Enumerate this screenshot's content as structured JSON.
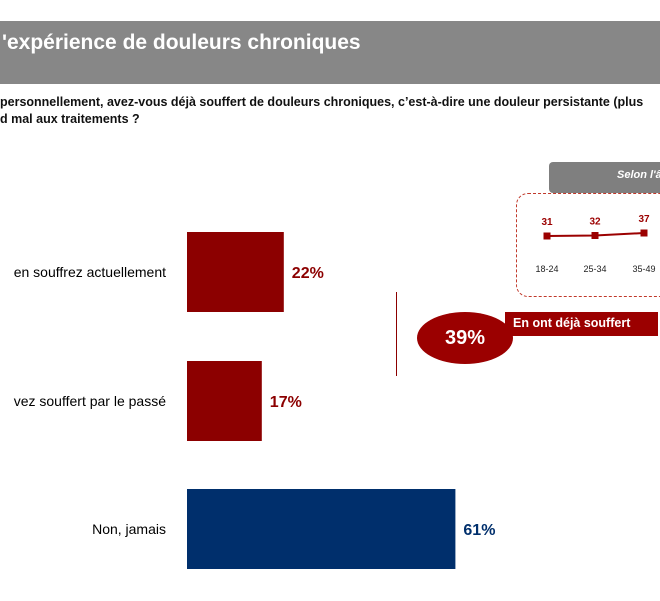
{
  "header": {
    "title": "'expérience de douleurs chroniques"
  },
  "question": {
    "line1": "personnellement, avez-vous déjà souffert de douleurs chroniques, c’est-à-dire une douleur persistante (plus",
    "line2": "d mal aux traitements ?"
  },
  "age_panel": {
    "header": "Selon l'â"
  },
  "summary": {
    "value": "39%",
    "label": "En ont déjà souffert"
  },
  "chart_data": [
    {
      "type": "bar",
      "orientation": "horizontal",
      "categories": [
        "en souffrez actuellement",
        "vez souffert par le passé",
        "Non, jamais"
      ],
      "values": [
        22,
        17,
        61
      ],
      "value_labels": [
        "22%",
        "17%",
        "61%"
      ],
      "colors": [
        "#8c0000",
        "#8c0000",
        "#002f6c"
      ],
      "unit": "%"
    },
    {
      "type": "line",
      "categories": [
        "18-24",
        "25-34",
        "35-49"
      ],
      "values": [
        31,
        32,
        37
      ],
      "value_labels": [
        "31",
        "32",
        "37"
      ],
      "color": "#9b0000"
    }
  ]
}
